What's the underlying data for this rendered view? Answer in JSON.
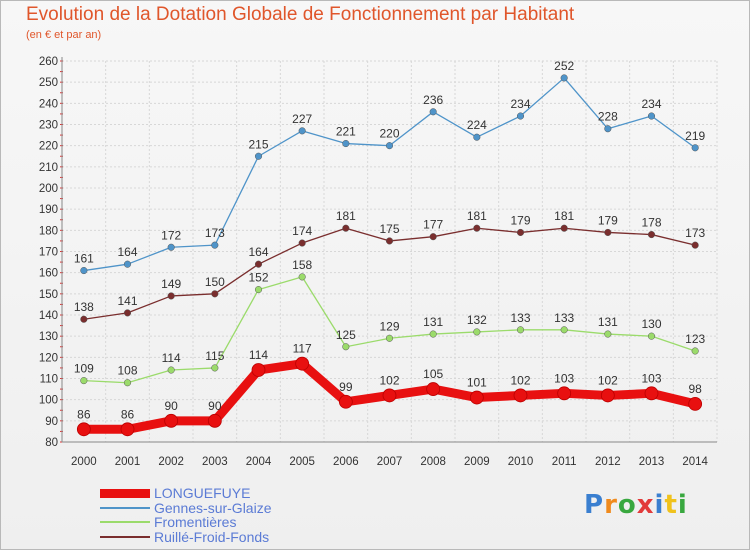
{
  "title": "Evolution de la Dotation Globale de Fonctionnement par Habitant",
  "subtitle": "(en € et par an)",
  "logo_text": "Proxiti",
  "colors": {
    "title": "#e0562b",
    "legend_text": "#5b7bd5"
  },
  "chart_data": {
    "type": "line",
    "x": [
      "2000",
      "2001",
      "2002",
      "2003",
      "2004",
      "2005",
      "2006",
      "2007",
      "2008",
      "2009",
      "2010",
      "2011",
      "2012",
      "2013",
      "2014"
    ],
    "ylim": [
      80,
      260
    ],
    "yticks": [
      80,
      90,
      100,
      110,
      120,
      130,
      140,
      150,
      160,
      170,
      180,
      190,
      200,
      210,
      220,
      230,
      240,
      250,
      260
    ],
    "grid": true,
    "legend_position": "bottom-left",
    "series": [
      {
        "name": "Gennes-sur-Glaize",
        "color": "#4f94c9",
        "line_width": "thin",
        "values": [
          161,
          164,
          172,
          173,
          215,
          227,
          221,
          220,
          236,
          224,
          234,
          252,
          228,
          234,
          219
        ]
      },
      {
        "name": "Ruillé-Froid-Fonds",
        "color": "#7a2e2e",
        "line_width": "thin",
        "values": [
          138,
          141,
          149,
          150,
          164,
          174,
          181,
          175,
          177,
          181,
          179,
          181,
          179,
          178,
          173
        ]
      },
      {
        "name": "Fromentières",
        "color": "#9bdb6b",
        "line_width": "thin",
        "values": [
          109,
          108,
          114,
          115,
          152,
          158,
          125,
          129,
          131,
          132,
          133,
          133,
          131,
          130,
          123
        ]
      },
      {
        "name": "LONGUEFUYE",
        "color": "#e81010",
        "line_width": "thick",
        "values": [
          86,
          86,
          90,
          90,
          114,
          117,
          99,
          102,
          105,
          101,
          102,
          103,
          102,
          103,
          98
        ]
      }
    ],
    "legend_order": [
      "LONGUEFUYE",
      "Gennes-sur-Glaize",
      "Fromentières",
      "Ruillé-Froid-Fonds"
    ]
  }
}
